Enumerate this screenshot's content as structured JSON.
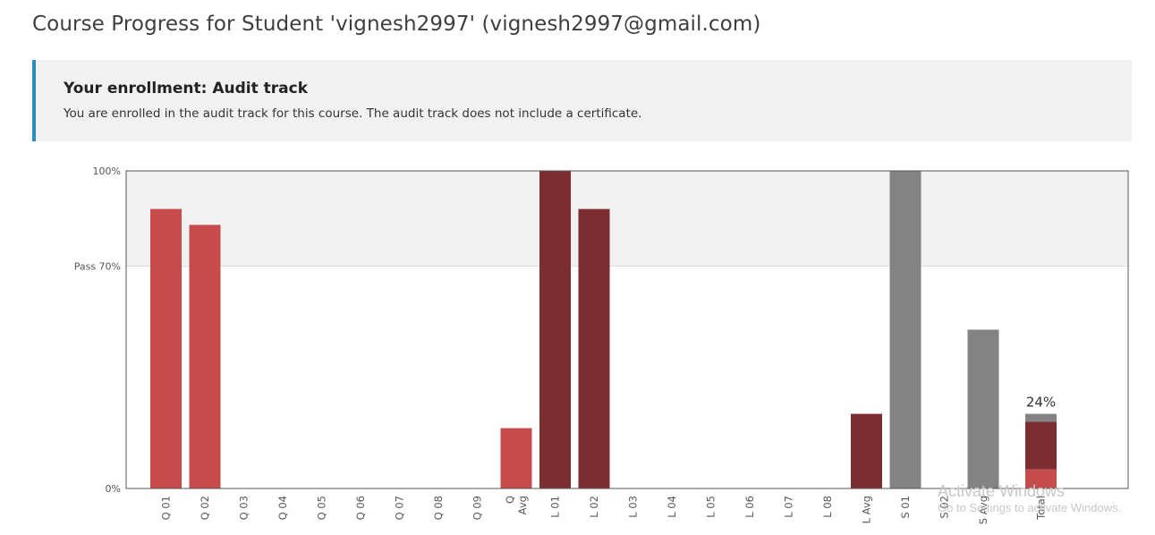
{
  "page": {
    "title": "Course Progress for Student 'vignesh2997' (vignesh2997@gmail.com)"
  },
  "enrollment": {
    "title": "Your enrollment: Audit track",
    "message": "You are enrolled in the audit track for this course. The audit track does not include a certificate."
  },
  "chart_data": {
    "type": "bar",
    "y_unit": "percent",
    "ylim": [
      0,
      100
    ],
    "yticks": [
      {
        "value": 0,
        "label": "0%"
      },
      {
        "value": 70,
        "label": "Pass 70%"
      },
      {
        "value": 100,
        "label": "100%"
      }
    ],
    "passing_band": [
      70,
      100
    ],
    "grid": false,
    "categories": [
      {
        "label": [
          "Q 01"
        ],
        "value": 88,
        "group": "q"
      },
      {
        "label": [
          "Q 02"
        ],
        "value": 83,
        "group": "q"
      },
      {
        "label": [
          "Q 03"
        ],
        "value": 0,
        "group": "q"
      },
      {
        "label": [
          "Q 04"
        ],
        "value": 0,
        "group": "q"
      },
      {
        "label": [
          "Q 05"
        ],
        "value": 0,
        "group": "q"
      },
      {
        "label": [
          "Q 06"
        ],
        "value": 0,
        "group": "q"
      },
      {
        "label": [
          "Q 07"
        ],
        "value": 0,
        "group": "q"
      },
      {
        "label": [
          "Q 08"
        ],
        "value": 0,
        "group": "q"
      },
      {
        "label": [
          "Q 09"
        ],
        "value": 0,
        "group": "q"
      },
      {
        "label": [
          "Q",
          "Avg"
        ],
        "value": 19,
        "group": "q"
      },
      {
        "label": [
          "L 01"
        ],
        "value": 100,
        "group": "l"
      },
      {
        "label": [
          "L 02"
        ],
        "value": 88,
        "group": "l"
      },
      {
        "label": [
          "L 03"
        ],
        "value": 0,
        "group": "l"
      },
      {
        "label": [
          "L 04"
        ],
        "value": 0,
        "group": "l"
      },
      {
        "label": [
          "L 05"
        ],
        "value": 0,
        "group": "l"
      },
      {
        "label": [
          "L 06"
        ],
        "value": 0,
        "group": "l"
      },
      {
        "label": [
          "L 07"
        ],
        "value": 0,
        "group": "l"
      },
      {
        "label": [
          "L 08"
        ],
        "value": 0,
        "group": "l"
      },
      {
        "label": [
          "L Avg"
        ],
        "value": 23.5,
        "group": "l"
      },
      {
        "label": [
          "S 01"
        ],
        "value": 100,
        "group": "s"
      },
      {
        "label": [
          "S 02"
        ],
        "value": 0,
        "group": "s"
      },
      {
        "label": [
          "S Avg"
        ],
        "value": 50,
        "group": "s"
      }
    ],
    "total": {
      "label": [
        "Total"
      ],
      "value_label": "24%",
      "segments": [
        {
          "group": "q",
          "value": 6
        },
        {
          "group": "l",
          "value": 15
        },
        {
          "group": "s",
          "value": 2.5
        }
      ]
    },
    "colors": {
      "q": "#c64b4d",
      "l": "#7d2d30",
      "s": "#838383",
      "passing_band": "#f1f1f1",
      "axis": "#555555",
      "tick_text": "#555555"
    }
  },
  "watermark": {
    "title": "Activate Windows",
    "subtitle": "Go to Settings to activate Windows."
  }
}
